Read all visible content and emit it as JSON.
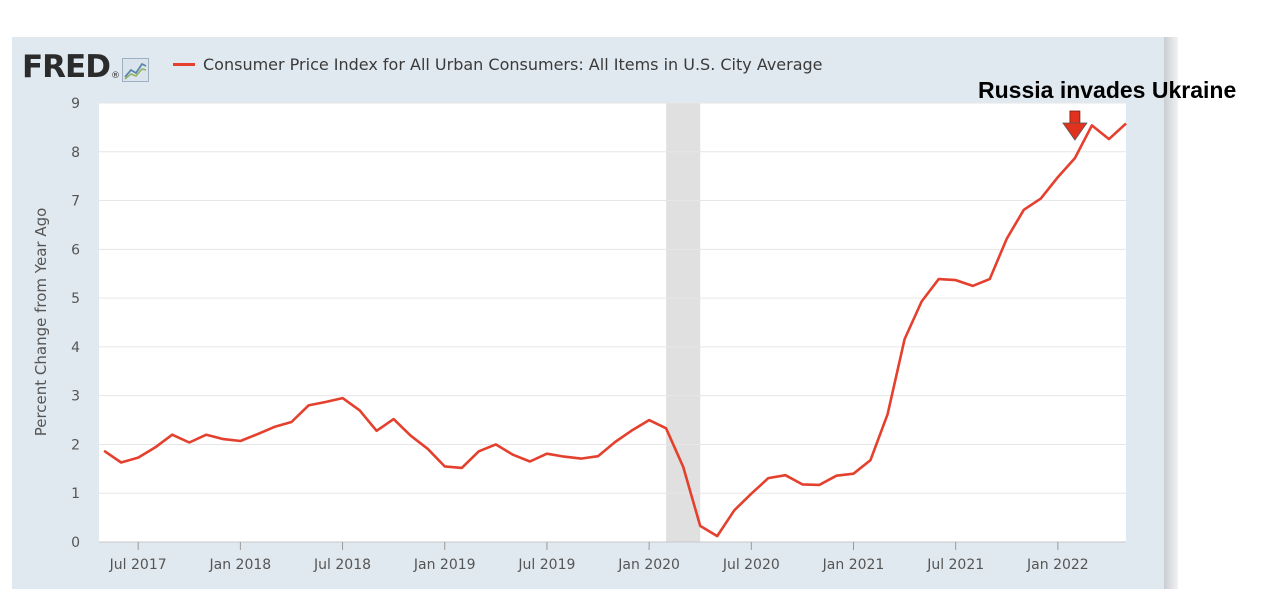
{
  "chart_data": {
    "type": "line",
    "source_logo": "FRED",
    "series": [
      {
        "name": "Consumer Price Index for All Urban Consumers: All Items in U.S. City Average",
        "color": "#e4402d",
        "x": [
          "2017-05",
          "2017-06",
          "2017-07",
          "2017-08",
          "2017-09",
          "2017-10",
          "2017-11",
          "2017-12",
          "2018-01",
          "2018-02",
          "2018-03",
          "2018-04",
          "2018-05",
          "2018-06",
          "2018-07",
          "2018-08",
          "2018-09",
          "2018-10",
          "2018-11",
          "2018-12",
          "2019-01",
          "2019-02",
          "2019-03",
          "2019-04",
          "2019-05",
          "2019-06",
          "2019-07",
          "2019-08",
          "2019-09",
          "2019-10",
          "2019-11",
          "2019-12",
          "2020-01",
          "2020-02",
          "2020-03",
          "2020-04",
          "2020-05",
          "2020-06",
          "2020-07",
          "2020-08",
          "2020-09",
          "2020-10",
          "2020-11",
          "2020-12",
          "2021-01",
          "2021-02",
          "2021-03",
          "2021-04",
          "2021-05",
          "2021-06",
          "2021-07",
          "2021-08",
          "2021-09",
          "2021-10",
          "2021-11",
          "2021-12",
          "2022-01",
          "2022-02",
          "2022-03",
          "2022-04",
          "2022-05"
        ],
        "values": [
          1.87,
          1.63,
          1.73,
          1.94,
          2.2,
          2.04,
          2.2,
          2.11,
          2.07,
          2.21,
          2.36,
          2.46,
          2.8,
          2.87,
          2.95,
          2.7,
          2.28,
          2.52,
          2.18,
          1.91,
          1.55,
          1.52,
          1.86,
          2.0,
          1.79,
          1.65,
          1.81,
          1.75,
          1.71,
          1.76,
          2.05,
          2.29,
          2.5,
          2.33,
          1.54,
          0.33,
          0.12,
          0.65,
          0.99,
          1.31,
          1.37,
          1.18,
          1.17,
          1.36,
          1.4,
          1.68,
          2.62,
          4.16,
          4.93,
          5.39,
          5.37,
          5.25,
          5.39,
          6.22,
          6.81,
          7.04,
          7.48,
          7.87,
          8.54,
          8.26,
          8.58
        ]
      }
    ],
    "ylabel": "Percent Change from Year Ago",
    "ylim": [
      0,
      9
    ],
    "yticks": [
      "0",
      "1",
      "2",
      "3",
      "4",
      "5",
      "6",
      "7",
      "8",
      "9"
    ],
    "xticks": [
      {
        "label": "Jul 2017",
        "date": "2017-07"
      },
      {
        "label": "Jan 2018",
        "date": "2018-01"
      },
      {
        "label": "Jul 2018",
        "date": "2018-07"
      },
      {
        "label": "Jan 2019",
        "date": "2019-01"
      },
      {
        "label": "Jul 2019",
        "date": "2019-07"
      },
      {
        "label": "Jan 2020",
        "date": "2020-01"
      },
      {
        "label": "Jul 2020",
        "date": "2020-07"
      },
      {
        "label": "Jan 2021",
        "date": "2021-01"
      },
      {
        "label": "Jul 2021",
        "date": "2021-07"
      },
      {
        "label": "Jan 2022",
        "date": "2022-01"
      }
    ],
    "recession": {
      "start": "2020-02",
      "end": "2020-04"
    },
    "grid": true,
    "annotation": {
      "text": "Russia invades Ukraine",
      "date": "2022-02",
      "arrow_color": "#e0321e"
    }
  }
}
